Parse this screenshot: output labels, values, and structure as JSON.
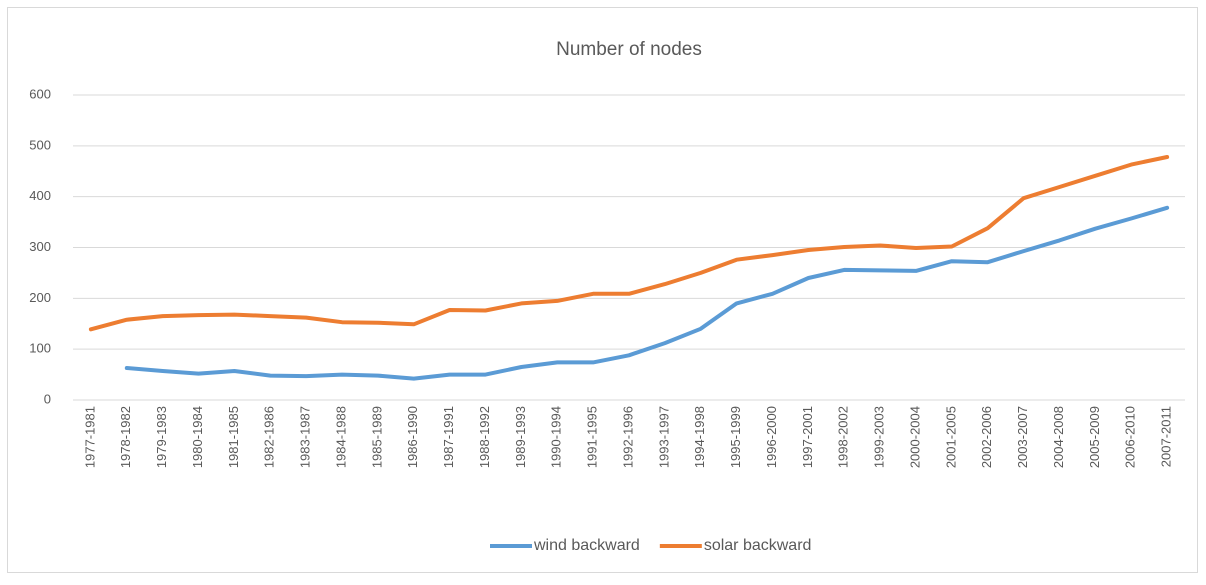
{
  "chart_data": {
    "type": "line",
    "title": "Number of nodes",
    "categories": [
      "1977-1981",
      "1978-1982",
      "1979-1983",
      "1980-1984",
      "1981-1985",
      "1982-1986",
      "1983-1987",
      "1984-1988",
      "1985-1989",
      "1986-1990",
      "1987-1991",
      "1988-1992",
      "1989-1993",
      "1990-1994",
      "1991-1995",
      "1992-1996",
      "1993-1997",
      "1994-1998",
      "1995-1999",
      "1996-2000",
      "1997-2001",
      "1998-2002",
      "1999-2003",
      "2000-2004",
      "2001-2005",
      "2002-2006",
      "2003-2007",
      "2004-2008",
      "2005-2009",
      "2006-2010",
      "2007-2011"
    ],
    "series": [
      {
        "name": "wind backward",
        "color": "#5b9bd5",
        "values": [
          null,
          63,
          57,
          52,
          57,
          48,
          47,
          50,
          48,
          42,
          50,
          50,
          65,
          74,
          74,
          88,
          112,
          140,
          190,
          209,
          240,
          256,
          255,
          254,
          273,
          271,
          293,
          314,
          337,
          357,
          378
        ]
      },
      {
        "name": "solar backward",
        "color": "#ed7d31",
        "values": [
          139,
          158,
          165,
          167,
          168,
          165,
          162,
          153,
          152,
          149,
          177,
          176,
          190,
          195,
          209,
          209,
          228,
          250,
          276,
          285,
          295,
          301,
          304,
          299,
          302,
          338,
          397,
          419,
          441,
          463,
          478
        ]
      }
    ],
    "ylim": [
      0,
      600
    ],
    "yticks": [
      0,
      100,
      200,
      300,
      400,
      500,
      600
    ],
    "grid": true,
    "legend": "bottom"
  }
}
